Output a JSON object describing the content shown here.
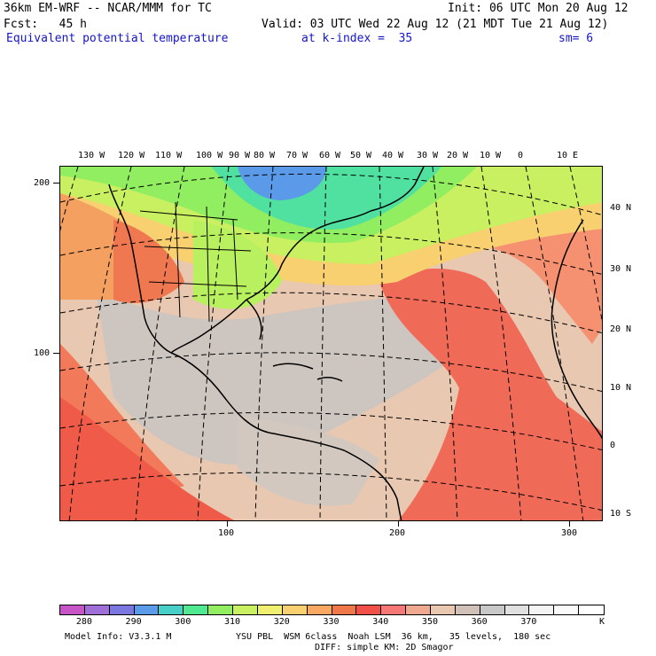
{
  "header": {
    "model_title": "36km EM-WRF -- NCAR/MMM for TC",
    "init": "Init: 06 UTC Mon 20 Aug 12",
    "fcst": "Fcst:   45 h",
    "valid": "Valid: 03 UTC Wed 22 Aug 12 (21 MDT Tue 21 Aug 12)",
    "field": "Equivalent potential temperature",
    "level": "at k-index =  35",
    "smooth": "sm= 6"
  },
  "map": {
    "lon_labels": [
      "130 W",
      "120 W",
      "110 W",
      "100 W",
      "90 W",
      "80 W",
      "70 W",
      "60 W",
      "50 W",
      "40 W",
      "30 W",
      "20 W",
      "10 W",
      "0",
      "10 E"
    ],
    "lat_labels": [
      "40 N",
      "30 N",
      "20 N",
      "10 N",
      "0",
      "10 S"
    ],
    "y_grid_labels": [
      "200",
      "100"
    ],
    "x_grid_labels": [
      "100",
      "200",
      "300"
    ]
  },
  "colorbar": {
    "labels": [
      "280",
      "290",
      "300",
      "310",
      "320",
      "330",
      "340",
      "350",
      "360",
      "370"
    ],
    "unit": "K",
    "colors": [
      "#c855c8",
      "#a070d8",
      "#7a78e0",
      "#5a9ae8",
      "#48d0c8",
      "#50e890",
      "#90ee60",
      "#c8f060",
      "#f0f070",
      "#f8d070",
      "#f8a860",
      "#f07848",
      "#f05048",
      "#f87878",
      "#f0a890",
      "#e8c8b0",
      "#d0c0b8",
      "#c8c8c8",
      "#e0e0e0",
      "#f4f4f4",
      "#fafafa",
      "#ffffff"
    ]
  },
  "footer": {
    "model_info": "Model Info: V3.3.1 M",
    "physics_1": "YSU PBL  WSM 6class  Noah LSM  36 km,   35 levels,  180 sec",
    "physics_2": "DIFF: simple KM: 2D Smagor"
  }
}
